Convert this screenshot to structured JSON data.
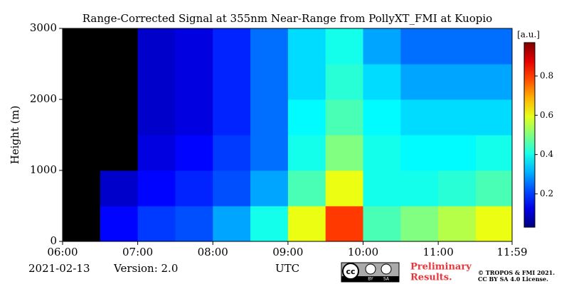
{
  "chart_data": {
    "type": "heatmap",
    "title": "Range-Corrected Signal at 355nm Near-Range from PollyXT_FMI at Kuopio",
    "ylabel": "Height (m)",
    "xlabel": "UTC",
    "xlim": [
      6,
      11.9833
    ],
    "xticks": [
      {
        "value": 6,
        "label": "06:00"
      },
      {
        "value": 7,
        "label": "07:00"
      },
      {
        "value": 8,
        "label": "08:00"
      },
      {
        "value": 9,
        "label": "09:00"
      },
      {
        "value": 10,
        "label": "10:00"
      },
      {
        "value": 11,
        "label": "11:00"
      },
      {
        "value": 11.9833,
        "label": "11:59"
      }
    ],
    "ylim": [
      0,
      3000
    ],
    "yticks": [
      0,
      1000,
      2000,
      3000
    ],
    "x_bins": [
      6,
      6.5,
      7,
      7.5,
      8,
      8.5,
      9,
      9.5,
      10,
      10.5,
      11,
      11.5,
      11.9833
    ],
    "y_bins": [
      0,
      500,
      1000,
      1500,
      2000,
      2500,
      3000
    ],
    "values": [
      [
        null,
        null,
        null,
        null,
        null,
        null
      ],
      [
        0.15,
        0.1,
        null,
        null,
        null,
        null
      ],
      [
        0.2,
        0.15,
        0.12,
        0.1,
        0.1,
        0.1
      ],
      [
        0.22,
        0.18,
        0.15,
        0.12,
        0.12,
        0.12
      ],
      [
        0.3,
        0.22,
        0.2,
        0.18,
        0.18,
        0.18
      ],
      [
        0.4,
        0.3,
        0.25,
        0.25,
        0.25,
        0.25
      ],
      [
        0.6,
        0.45,
        0.4,
        0.38,
        0.35,
        0.35
      ],
      [
        0.8,
        0.6,
        0.5,
        0.45,
        0.42,
        0.4
      ],
      [
        0.45,
        0.4,
        0.4,
        0.38,
        0.35,
        0.3
      ],
      [
        0.5,
        0.4,
        0.38,
        0.35,
        0.3,
        0.25
      ],
      [
        0.55,
        0.42,
        0.38,
        0.35,
        0.3,
        0.25
      ],
      [
        0.6,
        0.45,
        0.4,
        0.35,
        0.3,
        0.25
      ]
    ],
    "colormap": "jet",
    "missing_color": "#000000",
    "clim": [
      0.03,
      0.97
    ],
    "colorbar_label": "[a.u.]",
    "colorbar_ticks": [
      0.2,
      0.4,
      0.6,
      0.8
    ]
  },
  "footer": {
    "date": "2021-02-13",
    "version": "Version: 2.0",
    "badge": [
      "cc",
      "BY",
      "SA"
    ],
    "notice": [
      "Preliminary",
      "Results."
    ],
    "license": [
      "© TROPOS & FMI 2021.",
      "CC BY SA 4.0 License."
    ]
  }
}
